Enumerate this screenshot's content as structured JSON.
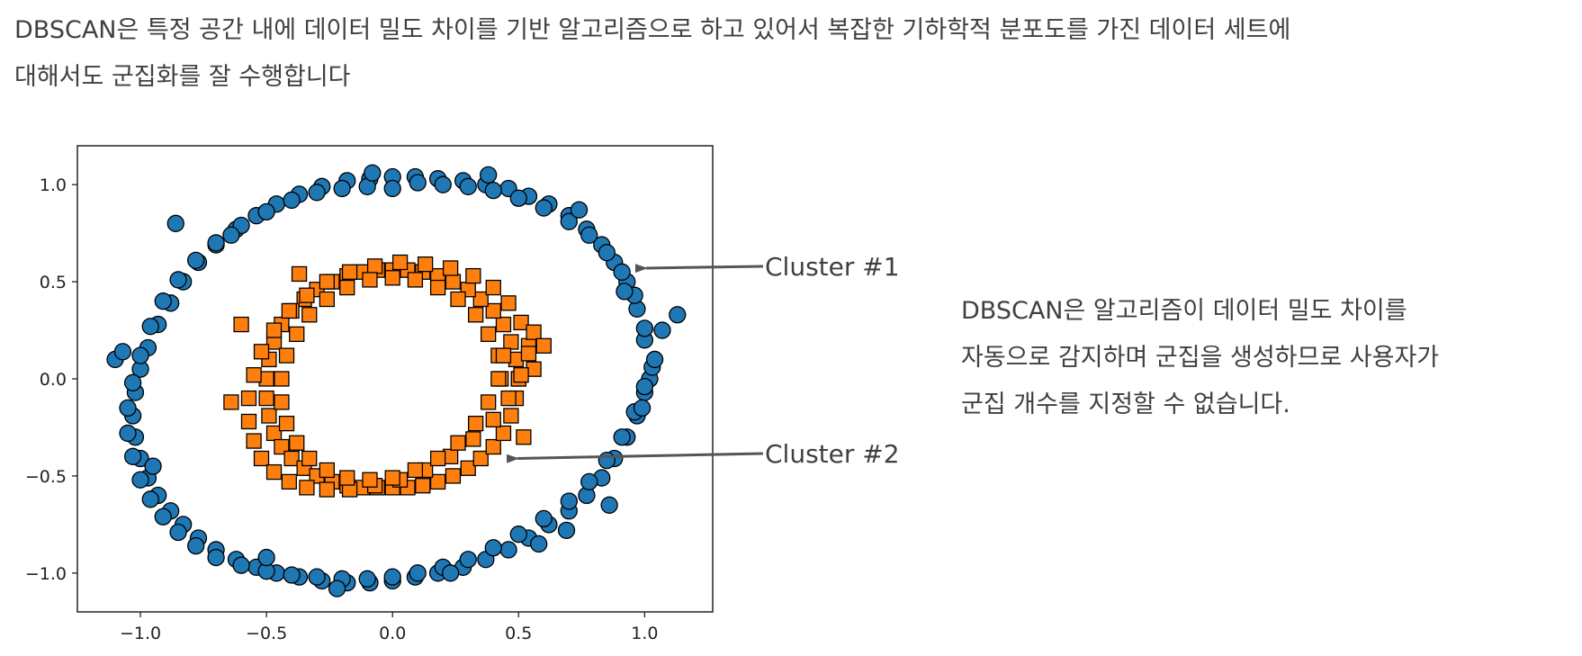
{
  "intro": {
    "line1": "DBSCAN은 특정 공간 내에 데이터 밀도 차이를 기반 알고리즘으로 하고 있어서 복잡한 기하학적 분포도를 가진 데이터 세트에",
    "line2": "대해서도 군집화를 잘 수행합니다"
  },
  "side_text": {
    "line1": "DBSCAN은 알고리즘이 데이터 밀도 차이를",
    "line2": "자동으로 감지하며 군집을 생성하므로 사용자가",
    "line3": "군집 개수를 지정할 수 없습니다."
  },
  "annotations": [
    {
      "label": "Cluster #1",
      "target_x": 0.97,
      "target_y": 0.57
    },
    {
      "label": "Cluster #2",
      "target_x": 0.46,
      "target_y": -0.41
    }
  ],
  "colors": {
    "cluster1": "#1f77b4",
    "cluster2": "#ff7f0e",
    "marker_edge": "#000000",
    "arrow": "#555555"
  },
  "chart_data": {
    "type": "scatter",
    "title": "",
    "xlabel": "",
    "ylabel": "",
    "xlim": [
      -1.25,
      1.27
    ],
    "ylim": [
      -1.2,
      1.2
    ],
    "xticks": [
      -1.0,
      -0.5,
      0.0,
      0.5,
      1.0
    ],
    "xtick_labels": [
      "−1.0",
      "−0.5",
      "0.0",
      "0.5",
      "1.0"
    ],
    "yticks": [
      -1.0,
      -0.5,
      0.0,
      0.5,
      1.0
    ],
    "ytick_labels": [
      "−1.0",
      "−0.5",
      "0.0",
      "0.5",
      "1.0"
    ],
    "grid": false,
    "series": [
      {
        "marker": "circle",
        "color": "#1f77b4",
        "x": [
          1.02,
          1.0,
          0.97,
          0.93,
          0.88,
          0.83,
          0.77,
          0.7,
          0.62,
          0.54,
          0.46,
          0.37,
          0.28,
          0.18,
          0.09,
          0.0,
          -0.09,
          -0.18,
          -0.28,
          -0.37,
          -0.46,
          -0.54,
          -0.62,
          -0.7,
          -0.77,
          -0.83,
          -0.88,
          -0.93,
          -0.97,
          -1.0,
          -1.02,
          -1.03,
          -1.02,
          -1.0,
          -0.97,
          -0.93,
          -0.88,
          -0.83,
          -0.77,
          -0.7,
          -0.62,
          -0.54,
          -0.46,
          -0.37,
          -0.28,
          -0.18,
          -0.09,
          0.0,
          0.09,
          0.18,
          0.28,
          0.37,
          0.46,
          0.54,
          0.62,
          0.7,
          0.77,
          0.83,
          0.88,
          0.93,
          0.97,
          1.0,
          1.03,
          1.0,
          0.96,
          0.91,
          0.85,
          0.78,
          0.7,
          0.6,
          0.5,
          0.4,
          0.3,
          0.2,
          0.1,
          0.0,
          -0.1,
          -0.2,
          -0.3,
          -0.4,
          -0.5,
          -0.6,
          -0.7,
          -0.78,
          -0.85,
          -0.91,
          -0.96,
          -1.0,
          -1.03,
          -1.05,
          -1.05,
          -1.03,
          -1.0,
          -0.96,
          -0.91,
          -0.85,
          -0.78,
          -0.7,
          -0.6,
          -0.5,
          -0.4,
          -0.3,
          -0.2,
          -0.1,
          0.0,
          0.1,
          0.2,
          0.3,
          0.4,
          0.5,
          0.6,
          0.7,
          0.78,
          0.85,
          0.91,
          0.96,
          1.0,
          1.04,
          1.07,
          1.13,
          -1.1,
          -1.07,
          0.74,
          0.69,
          -0.95,
          0.99,
          0.92,
          -0.08,
          0.38,
          -0.64,
          0.58,
          -0.22,
          0.23,
          -0.86,
          0.86,
          -0.5
        ],
        "y": [
          0.0,
          0.2,
          0.36,
          0.5,
          0.6,
          0.69,
          0.77,
          0.84,
          0.9,
          0.94,
          0.98,
          1.0,
          1.02,
          1.03,
          1.04,
          1.04,
          1.03,
          1.02,
          0.99,
          0.95,
          0.9,
          0.84,
          0.77,
          0.69,
          0.6,
          0.5,
          0.39,
          0.28,
          0.16,
          0.05,
          -0.07,
          -0.19,
          -0.3,
          -0.41,
          -0.51,
          -0.6,
          -0.68,
          -0.75,
          -0.82,
          -0.88,
          -0.93,
          -0.97,
          -1.0,
          -1.02,
          -1.04,
          -1.05,
          -1.05,
          -1.04,
          -1.02,
          -1.0,
          -0.97,
          -0.93,
          -0.88,
          -0.82,
          -0.75,
          -0.68,
          -0.6,
          -0.51,
          -0.41,
          -0.3,
          -0.19,
          -0.07,
          0.06,
          0.26,
          0.43,
          0.55,
          0.65,
          0.74,
          0.81,
          0.88,
          0.93,
          0.97,
          0.99,
          1.0,
          1.01,
          0.98,
          0.99,
          0.98,
          0.96,
          0.92,
          0.86,
          0.79,
          0.7,
          0.61,
          0.51,
          0.4,
          0.27,
          0.12,
          -0.02,
          -0.15,
          -0.28,
          -0.4,
          -0.52,
          -0.62,
          -0.71,
          -0.79,
          -0.86,
          -0.92,
          -0.96,
          -0.99,
          -1.01,
          -1.02,
          -1.03,
          -1.03,
          -1.02,
          -1.0,
          -0.97,
          -0.93,
          -0.87,
          -0.8,
          -0.72,
          -0.63,
          -0.53,
          -0.42,
          -0.3,
          -0.17,
          -0.04,
          0.1,
          0.25,
          0.33,
          0.1,
          0.14,
          0.87,
          -0.78,
          -0.45,
          -0.15,
          0.45,
          1.06,
          1.05,
          0.74,
          -0.85,
          -1.08,
          -1.0,
          0.8,
          -0.65,
          -0.92
        ],
        "name": ""
      },
      {
        "marker": "square",
        "color": "#ff7f0e",
        "x": [
          0.5,
          0.49,
          0.47,
          0.44,
          0.4,
          0.35,
          0.3,
          0.24,
          0.18,
          0.12,
          0.06,
          0.0,
          -0.06,
          -0.12,
          -0.18,
          -0.24,
          -0.3,
          -0.35,
          -0.4,
          -0.44,
          -0.47,
          -0.49,
          -0.5,
          -0.5,
          -0.49,
          -0.47,
          -0.44,
          -0.4,
          -0.35,
          -0.3,
          -0.24,
          -0.18,
          -0.12,
          -0.06,
          0.0,
          0.06,
          0.12,
          0.18,
          0.24,
          0.3,
          0.35,
          0.4,
          0.44,
          0.47,
          0.49,
          0.5,
          0.56,
          0.54,
          0.51,
          0.46,
          0.4,
          0.32,
          0.23,
          0.13,
          0.03,
          -0.07,
          -0.17,
          -0.26,
          -0.34,
          -0.41,
          -0.47,
          -0.52,
          -0.55,
          -0.57,
          -0.57,
          -0.55,
          -0.52,
          -0.47,
          -0.41,
          -0.34,
          -0.26,
          -0.17,
          -0.07,
          0.03,
          0.13,
          0.23,
          0.32,
          0.4,
          0.46,
          0.51,
          0.54,
          0.56,
          0.43,
          0.42,
          0.38,
          0.33,
          0.26,
          0.18,
          0.09,
          0.0,
          -0.09,
          -0.18,
          -0.26,
          -0.33,
          -0.38,
          -0.42,
          -0.44,
          -0.44,
          -0.42,
          -0.38,
          -0.33,
          -0.26,
          -0.18,
          -0.09,
          0.0,
          0.09,
          0.18,
          0.26,
          0.33,
          0.38,
          0.42,
          0.44,
          -0.64,
          -0.37,
          0.6,
          -0.6,
          0.52
        ],
        "y": [
          0.0,
          0.1,
          0.19,
          0.28,
          0.35,
          0.41,
          0.46,
          0.5,
          0.53,
          0.55,
          0.56,
          0.56,
          0.56,
          0.55,
          0.53,
          0.5,
          0.46,
          0.41,
          0.35,
          0.28,
          0.19,
          0.1,
          0.0,
          -0.1,
          -0.19,
          -0.28,
          -0.35,
          -0.41,
          -0.46,
          -0.5,
          -0.53,
          -0.55,
          -0.56,
          -0.56,
          -0.56,
          -0.56,
          -0.55,
          -0.53,
          -0.5,
          -0.46,
          -0.41,
          -0.35,
          -0.28,
          -0.19,
          -0.1,
          0.0,
          0.05,
          0.17,
          0.29,
          0.39,
          0.47,
          0.53,
          0.57,
          0.59,
          0.6,
          0.58,
          0.55,
          0.5,
          0.43,
          0.35,
          0.25,
          0.14,
          0.02,
          -0.1,
          -0.22,
          -0.32,
          -0.41,
          -0.48,
          -0.53,
          -0.56,
          -0.57,
          -0.57,
          -0.55,
          -0.52,
          -0.47,
          -0.4,
          -0.31,
          -0.21,
          -0.1,
          0.02,
          0.13,
          0.24,
          0.0,
          0.12,
          0.23,
          0.33,
          0.41,
          0.47,
          0.51,
          0.52,
          0.51,
          0.47,
          0.41,
          0.33,
          0.23,
          0.12,
          0.0,
          -0.12,
          -0.23,
          -0.33,
          -0.41,
          -0.47,
          -0.51,
          -0.52,
          -0.51,
          -0.47,
          -0.41,
          -0.33,
          -0.23,
          -0.12,
          0.0,
          0.12,
          -0.12,
          0.54,
          0.17,
          0.28,
          -0.3
        ],
        "name": ""
      }
    ]
  }
}
